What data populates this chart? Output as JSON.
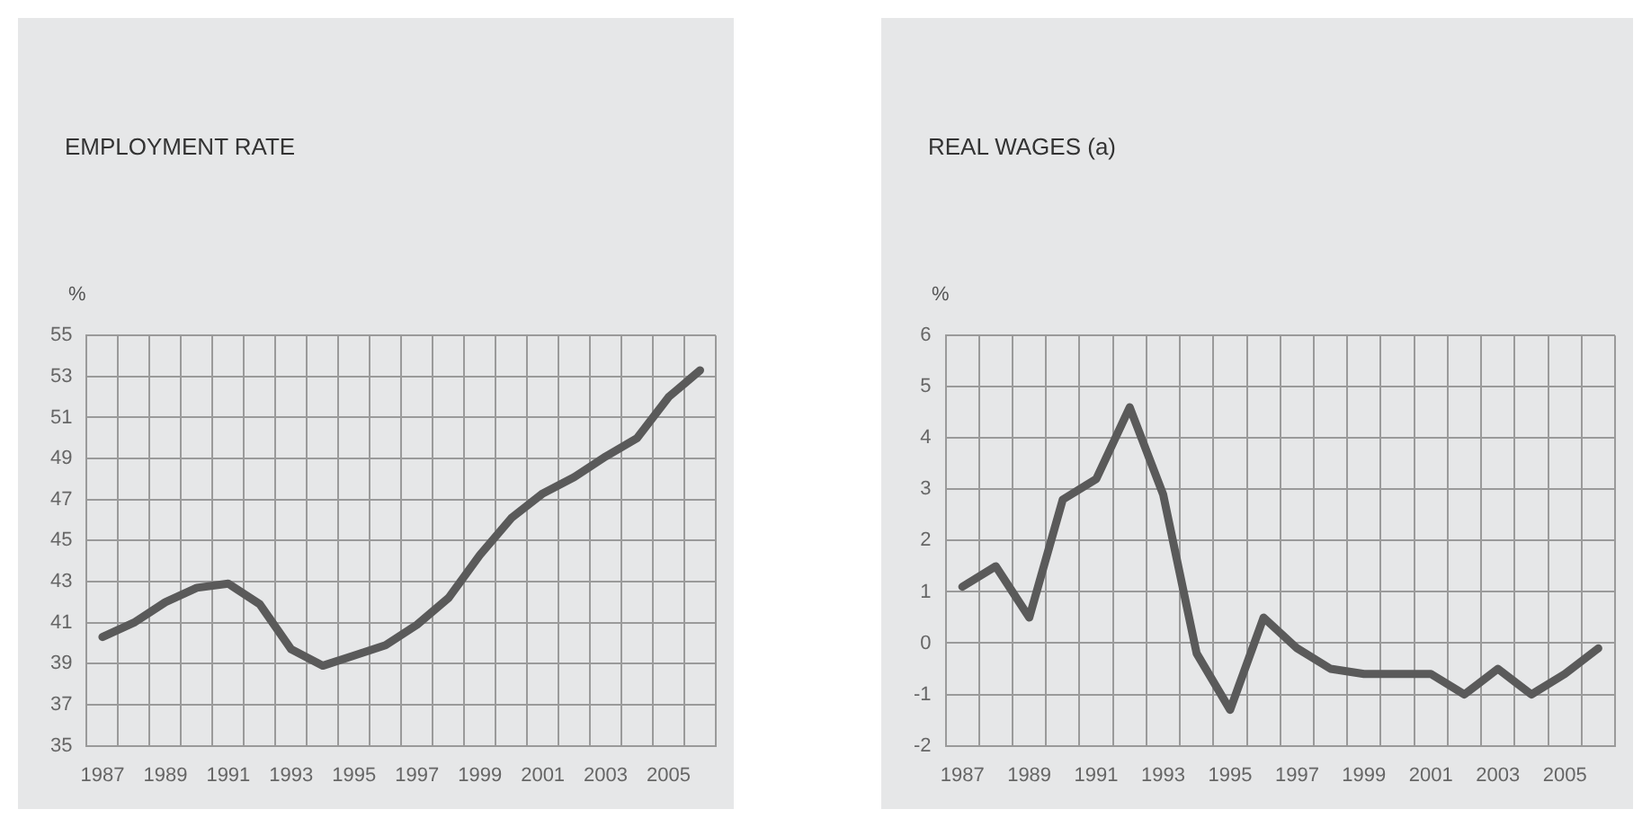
{
  "chart_data": [
    {
      "type": "line",
      "title": "EMPLOYMENT RATE",
      "ylabel": "%",
      "categories": [
        "1987",
        null,
        "1989",
        null,
        "1991",
        null,
        "1993",
        null,
        "1995",
        null,
        "1997",
        null,
        "1999",
        null,
        "2001",
        null,
        "2003",
        null,
        "2005",
        null
      ],
      "series": [
        {
          "color": "#5a5a5a",
          "values": [
            40.3,
            41.0,
            42.0,
            42.7,
            42.9,
            41.9,
            39.7,
            38.9,
            39.4,
            39.9,
            40.9,
            42.2,
            44.3,
            46.1,
            47.3,
            48.1,
            49.1,
            50.0,
            52.0,
            53.3
          ]
        }
      ],
      "ylim": [
        35,
        55
      ],
      "yticks": [
        35,
        37,
        39,
        41,
        43,
        45,
        47,
        49,
        51,
        53,
        55
      ],
      "grid": true,
      "marker": "none",
      "legend": false
    },
    {
      "type": "line",
      "title": "REAL WAGES (a)",
      "ylabel": "%",
      "categories": [
        "1987",
        null,
        "1989",
        null,
        "1991",
        null,
        "1993",
        null,
        "1995",
        null,
        "1997",
        null,
        "1999",
        null,
        "2001",
        null,
        "2003",
        null,
        "2005",
        null
      ],
      "series": [
        {
          "color": "#5a5a5a",
          "values": [
            1.1,
            1.5,
            0.5,
            2.8,
            3.2,
            4.6,
            2.9,
            -0.2,
            -1.3,
            0.5,
            -0.1,
            -0.5,
            -0.6,
            -0.6,
            -0.6,
            -1.0,
            -0.5,
            -1.0,
            -0.6,
            -0.1
          ]
        }
      ],
      "ylim": [
        -2,
        6
      ],
      "yticks": [
        -2,
        -1,
        0,
        1,
        2,
        3,
        4,
        5,
        6
      ],
      "grid": true,
      "marker": "none",
      "legend": false
    }
  ]
}
